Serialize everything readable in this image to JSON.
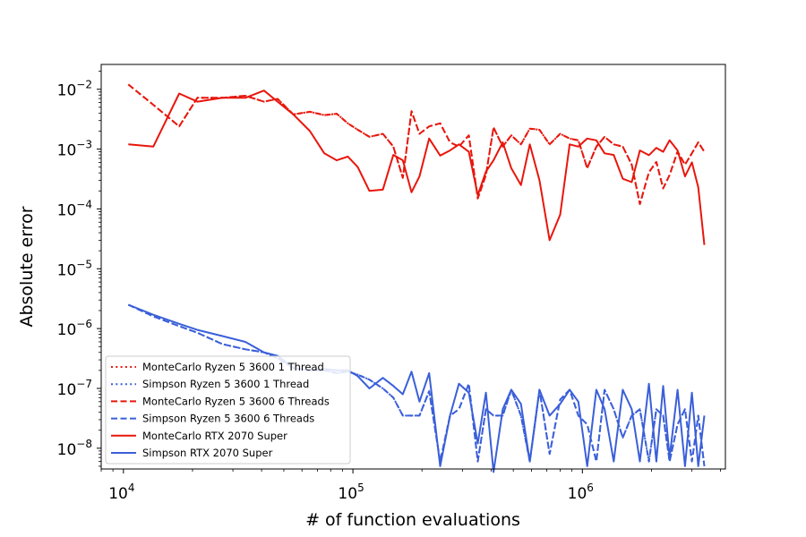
{
  "chart_data": {
    "type": "line",
    "title": "",
    "xlabel": "# of function evaluations",
    "ylabel": "Absolute error",
    "xscale": "log",
    "yscale": "log",
    "xlim": [
      8000,
      4200000
    ],
    "ylim": [
      4.5e-09,
      0.026
    ],
    "x_ticks": [
      {
        "value": 10000,
        "base": "10",
        "exp": "4"
      },
      {
        "value": 100000,
        "base": "10",
        "exp": "5"
      },
      {
        "value": 1000000,
        "base": "10",
        "exp": "6"
      }
    ],
    "y_ticks": [
      {
        "value": 0.01,
        "base": "10",
        "exp": "−2"
      },
      {
        "value": 0.001,
        "base": "10",
        "exp": "−3"
      },
      {
        "value": 0.0001,
        "base": "10",
        "exp": "−4"
      },
      {
        "value": 1e-05,
        "base": "10",
        "exp": "−5"
      },
      {
        "value": 1e-06,
        "base": "10",
        "exp": "−6"
      },
      {
        "value": 1e-07,
        "base": "10",
        "exp": "−7"
      },
      {
        "value": 1e-08,
        "base": "10",
        "exp": "−8"
      }
    ],
    "legend_position": "lower-left",
    "series": [
      {
        "name": "MonteCarlo Ryzen 5 3600 1 Thread",
        "color": "#e8160c",
        "style": "dotted",
        "x": [
          10500,
          13500,
          17500,
          21000,
          27000,
          34000,
          41000,
          47000,
          55000,
          65000,
          75000,
          85000,
          95000,
          105000,
          118000,
          135000,
          150000,
          165000,
          180000,
          195000,
          215000,
          240000,
          265000,
          290000,
          320000,
          350000,
          380000,
          410000,
          450000,
          490000,
          540000,
          590000,
          650000,
          720000,
          800000,
          880000,
          960000,
          1050000,
          1150000,
          1250000,
          1370000,
          1500000,
          1640000,
          1780000,
          1950000,
          2100000,
          2250000,
          2400000,
          2600000,
          2800000,
          3000000,
          3200000,
          3400000
        ],
        "y": [
          0.012,
          0.0055,
          0.0024,
          0.0072,
          0.0072,
          0.0078,
          0.0062,
          0.0069,
          0.0038,
          0.0042,
          0.0037,
          0.0039,
          0.0027,
          0.0021,
          0.0016,
          0.0018,
          0.0011,
          0.00033,
          0.0043,
          0.0018,
          0.0024,
          0.0027,
          0.0013,
          0.0011,
          0.0017,
          0.00015,
          0.00037,
          0.0023,
          0.0011,
          0.0017,
          0.0012,
          0.0022,
          0.0021,
          0.0012,
          0.0018,
          0.0015,
          0.0014,
          0.00048,
          0.0011,
          0.0016,
          0.0012,
          0.0011,
          0.00055,
          0.00012,
          0.00041,
          0.00061,
          0.00022,
          0.00037,
          0.00091,
          0.00055,
          0.00085,
          0.0013,
          0.0009
        ]
      },
      {
        "name": "Simpson Ryzen 5 3600 1 Thread",
        "color": "#3a5fd9",
        "style": "dotted",
        "x": [
          10500,
          13500,
          17500,
          21000,
          27000,
          34000,
          41000,
          47000,
          55000,
          65000,
          75000,
          85000,
          95000,
          105000,
          118000,
          135000,
          150000,
          165000,
          180000,
          195000,
          215000,
          240000,
          265000,
          290000,
          320000,
          350000,
          380000,
          410000,
          450000,
          490000,
          540000,
          590000,
          650000,
          720000,
          800000,
          880000,
          960000,
          1050000,
          1150000,
          1250000,
          1370000,
          1500000,
          1640000,
          1780000,
          1950000,
          2100000,
          2250000,
          2400000,
          2600000,
          2800000,
          3000000,
          3200000,
          3400000
        ],
        "y": [
          2.5e-06,
          1.6e-06,
          1.1e-06,
          8.5e-07,
          5.5e-07,
          4.5e-07,
          4e-07,
          3.2e-07,
          2.2e-07,
          2e-07,
          2e-07,
          1.8e-07,
          1.9e-07,
          1.7e-07,
          1.4e-07,
          1e-07,
          7e-08,
          3.5e-08,
          3.5e-08,
          3.5e-08,
          9e-08,
          6e-09,
          3.5e-08,
          4.5e-08,
          1.2e-07,
          6e-09,
          4.5e-08,
          3.5e-08,
          3.5e-08,
          9.5e-08,
          3.5e-08,
          6e-09,
          9.5e-08,
          8e-09,
          6.5e-08,
          9.5e-08,
          3.5e-08,
          2.5e-08,
          6e-09,
          9.5e-08,
          4.5e-08,
          1.5e-08,
          3.5e-08,
          4.5e-08,
          6e-09,
          4.5e-08,
          3.5e-08,
          6e-09,
          2.5e-08,
          4.5e-08,
          6e-09,
          3.5e-08,
          5e-09
        ]
      },
      {
        "name": "MonteCarlo Ryzen 5 3600 6 Threads",
        "color": "#e8160c",
        "style": "dashed",
        "x": [
          10500,
          13500,
          17500,
          21000,
          27000,
          34000,
          41000,
          47000,
          55000,
          65000,
          75000,
          85000,
          95000,
          105000,
          118000,
          135000,
          150000,
          165000,
          180000,
          195000,
          215000,
          240000,
          265000,
          290000,
          320000,
          350000,
          380000,
          410000,
          450000,
          490000,
          540000,
          590000,
          650000,
          720000,
          800000,
          880000,
          960000,
          1050000,
          1150000,
          1250000,
          1370000,
          1500000,
          1640000,
          1780000,
          1950000,
          2100000,
          2250000,
          2400000,
          2600000,
          2800000,
          3000000,
          3200000,
          3400000
        ],
        "y": [
          0.012,
          0.0055,
          0.0024,
          0.0072,
          0.0072,
          0.0078,
          0.0062,
          0.0069,
          0.0038,
          0.0042,
          0.0037,
          0.0039,
          0.0027,
          0.0021,
          0.0016,
          0.0018,
          0.0011,
          0.00033,
          0.0043,
          0.0018,
          0.0024,
          0.0027,
          0.0013,
          0.0011,
          0.0017,
          0.00015,
          0.00037,
          0.0023,
          0.0011,
          0.0017,
          0.0012,
          0.0022,
          0.0021,
          0.0012,
          0.0018,
          0.0015,
          0.0014,
          0.00048,
          0.0011,
          0.0016,
          0.0012,
          0.0011,
          0.00055,
          0.00012,
          0.00041,
          0.00061,
          0.00022,
          0.00037,
          0.00091,
          0.00055,
          0.00085,
          0.0013,
          0.0009
        ]
      },
      {
        "name": "Simpson Ryzen 5 3600 6 Threads",
        "color": "#3a5fd9",
        "style": "dashed",
        "x": [
          10500,
          13500,
          17500,
          21000,
          27000,
          34000,
          41000,
          47000,
          55000,
          65000,
          75000,
          85000,
          95000,
          105000,
          118000,
          135000,
          150000,
          165000,
          180000,
          195000,
          215000,
          240000,
          265000,
          290000,
          320000,
          350000,
          380000,
          410000,
          450000,
          490000,
          540000,
          590000,
          650000,
          720000,
          800000,
          880000,
          960000,
          1050000,
          1150000,
          1250000,
          1370000,
          1500000,
          1640000,
          1780000,
          1950000,
          2100000,
          2250000,
          2400000,
          2600000,
          2800000,
          3000000,
          3200000,
          3400000
        ],
        "y": [
          2.5e-06,
          1.6e-06,
          1.1e-06,
          8.5e-07,
          5.5e-07,
          4.5e-07,
          4e-07,
          3.2e-07,
          2.2e-07,
          2e-07,
          2e-07,
          1.8e-07,
          1.9e-07,
          1.7e-07,
          1.4e-07,
          1e-07,
          7e-08,
          3.5e-08,
          3.5e-08,
          3.5e-08,
          9e-08,
          6e-09,
          3.5e-08,
          4.5e-08,
          1.2e-07,
          6e-09,
          4.5e-08,
          3.5e-08,
          3.5e-08,
          9.5e-08,
          3.5e-08,
          6e-09,
          9.5e-08,
          8e-09,
          6.5e-08,
          9.5e-08,
          3.5e-08,
          2.5e-08,
          6e-09,
          9.5e-08,
          4.5e-08,
          1.5e-08,
          3.5e-08,
          4.5e-08,
          6e-09,
          4.5e-08,
          3.5e-08,
          6e-09,
          2.5e-08,
          4.5e-08,
          6e-09,
          3.5e-08,
          5e-09
        ]
      },
      {
        "name": "MonteCarlo RTX 2070 Super",
        "color": "#e8160c",
        "style": "solid",
        "x": [
          10500,
          13500,
          17500,
          21000,
          27000,
          34000,
          41000,
          47000,
          55000,
          65000,
          75000,
          85000,
          95000,
          105000,
          118000,
          135000,
          150000,
          165000,
          180000,
          195000,
          215000,
          240000,
          265000,
          290000,
          320000,
          350000,
          380000,
          410000,
          450000,
          490000,
          540000,
          590000,
          650000,
          720000,
          800000,
          880000,
          960000,
          1050000,
          1150000,
          1250000,
          1370000,
          1500000,
          1640000,
          1780000,
          1950000,
          2100000,
          2250000,
          2400000,
          2600000,
          2800000,
          3000000,
          3200000,
          3400000
        ],
        "y": [
          0.0012,
          0.0011,
          0.0085,
          0.0062,
          0.0072,
          0.0072,
          0.0095,
          0.0062,
          0.0038,
          0.002,
          0.00085,
          0.00065,
          0.00075,
          0.0005,
          0.0002,
          0.00021,
          0.0008,
          0.00065,
          0.00019,
          0.00035,
          0.0015,
          0.00078,
          0.00095,
          0.0012,
          0.0009,
          0.00017,
          0.00042,
          0.00065,
          0.0013,
          0.00048,
          0.00025,
          0.0012,
          0.0003,
          3e-05,
          8e-05,
          0.0012,
          0.0011,
          0.0015,
          0.0014,
          0.00085,
          0.0008,
          0.00032,
          0.00028,
          0.00095,
          0.00079,
          0.00105,
          0.0009,
          0.0014,
          0.00095,
          0.00035,
          0.0006,
          0.00023,
          2.5e-05
        ]
      },
      {
        "name": "Simpson RTX 2070 Super",
        "color": "#3a5fd9",
        "style": "solid",
        "x": [
          10500,
          13500,
          17500,
          21000,
          27000,
          34000,
          41000,
          47000,
          55000,
          65000,
          75000,
          85000,
          95000,
          105000,
          118000,
          135000,
          150000,
          165000,
          180000,
          195000,
          215000,
          240000,
          265000,
          290000,
          320000,
          350000,
          380000,
          410000,
          450000,
          490000,
          540000,
          590000,
          650000,
          720000,
          800000,
          880000,
          960000,
          1050000,
          1150000,
          1250000,
          1370000,
          1500000,
          1640000,
          1780000,
          1950000,
          2100000,
          2250000,
          2400000,
          2600000,
          2800000,
          3000000,
          3200000,
          3400000
        ],
        "y": [
          2.5e-06,
          1.7e-06,
          1.2e-06,
          9.5e-07,
          7.5e-07,
          6e-07,
          4e-07,
          3.5e-07,
          2.2e-07,
          2e-07,
          2.1e-07,
          2e-07,
          2e-07,
          1.6e-07,
          1e-07,
          1.5e-07,
          1.1e-07,
          8e-08,
          1.9e-07,
          6e-08,
          1.8e-07,
          5e-09,
          3.5e-08,
          1.2e-07,
          8.5e-08,
          1.2e-08,
          8.5e-08,
          4e-09,
          4.5e-08,
          9.5e-08,
          5.5e-08,
          6e-09,
          9.5e-08,
          3.5e-08,
          5.5e-08,
          9.5e-08,
          6e-08,
          5e-09,
          9.5e-08,
          4.5e-08,
          6e-09,
          9.5e-08,
          4.5e-08,
          6e-09,
          1.2e-07,
          6e-09,
          1.1e-07,
          7e-09,
          9.5e-08,
          5e-09,
          8.5e-08,
          5e-09,
          3.5e-08
        ]
      }
    ]
  }
}
